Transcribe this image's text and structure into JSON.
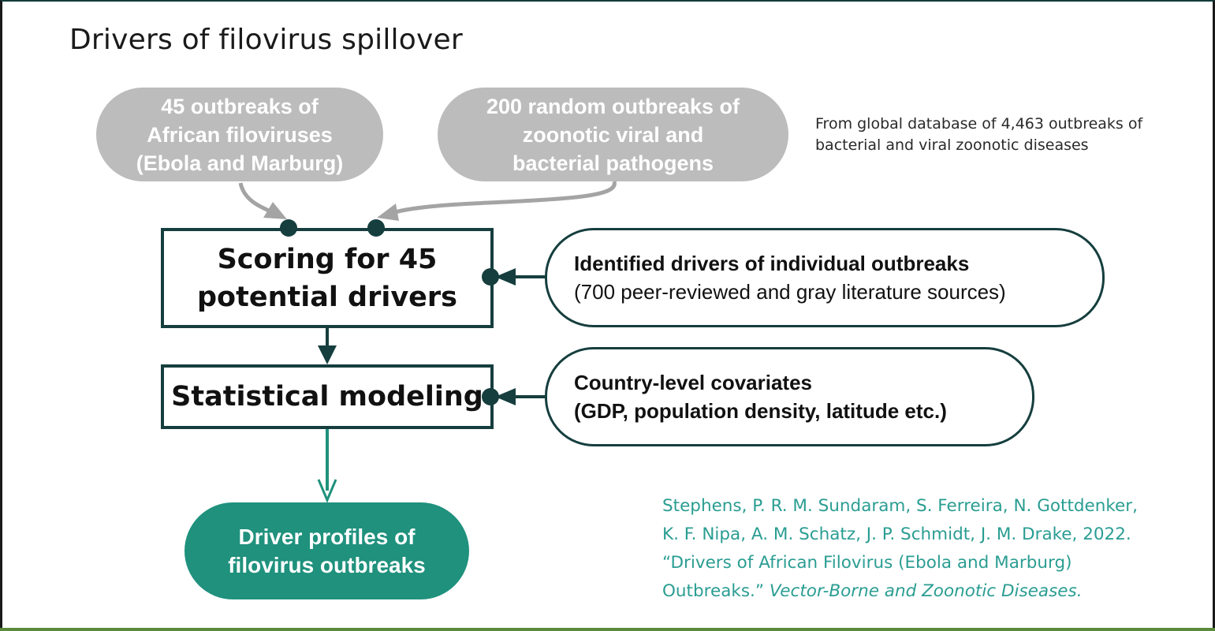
{
  "title": "Drivers of filovirus spillover",
  "sources": {
    "filovirus": [
      "45 outbreaks of",
      "African filoviruses",
      "(Ebola and Marburg)"
    ],
    "random": [
      "200 random outbreaks of",
      "zoonotic viral and",
      "bacterial pathogens"
    ]
  },
  "database_note": [
    "From global database of 4,463 outbreaks of",
    "bacterial and viral zoonotic diseases"
  ],
  "scoring_box": [
    "Scoring for 45",
    "potential drivers"
  ],
  "modeling_box": "Statistical modeling",
  "drivers_input": {
    "heading": "Identified drivers of individual outbreaks",
    "detail": "(700 peer-reviewed and gray literature sources)"
  },
  "covariates_input": {
    "heading": "Country-level covariates",
    "detail": "(GDP, population density, latitude etc.)"
  },
  "output_box": [
    "Driver profiles of",
    "filovirus outbreaks"
  ],
  "citation": {
    "line1": "Stephens, P. R. M. Sundaram, S. Ferreira, N. Gottdenker,",
    "line2": "K. F. Nipa, A. M. Schatz, J. P. Schmidt, J. M. Drake, 2022.",
    "line3": "“Drivers of African Filovirus (Ebola and Marburg)",
    "line4_plain": "Outbreaks.” ",
    "line4_italic": "Vector-Borne and Zoonotic Diseases."
  },
  "colors": {
    "dark_teal": "#163e3e",
    "gray": "#bdbcbc",
    "teal": "#1f917d",
    "citation": "#2a9d92"
  }
}
